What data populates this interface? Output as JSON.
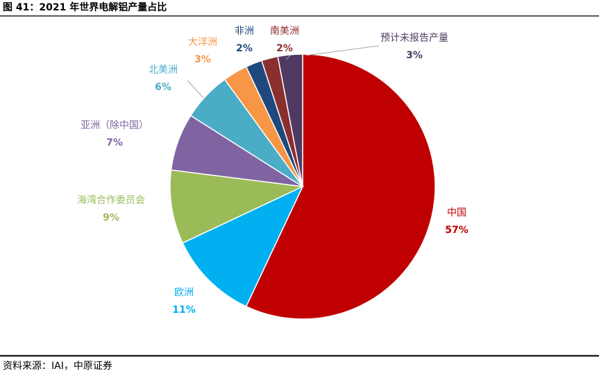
{
  "title": "图 41：2021 年世界电解铝产量占比",
  "source": "资料来源：IAI，中原证券",
  "chart_data": {
    "type": "pie",
    "categories": [
      "中国",
      "欧洲",
      "海湾合作委员会",
      "亚洲（除中国）",
      "北美洲",
      "大洋洲",
      "非洲",
      "南美洲",
      "预计未报告产量"
    ],
    "values": [
      57,
      11,
      9,
      7,
      6,
      3,
      2,
      2,
      3
    ],
    "value_labels": [
      "57%",
      "11%",
      "9%",
      "7%",
      "6%",
      "3%",
      "2%",
      "2%",
      "3%"
    ],
    "colors": [
      "#c00000",
      "#00b0f0",
      "#9bbb59",
      "#8064a2",
      "#4bacc6",
      "#f79646",
      "#1f497d",
      "#8b2e2e",
      "#4e3a62"
    ]
  }
}
